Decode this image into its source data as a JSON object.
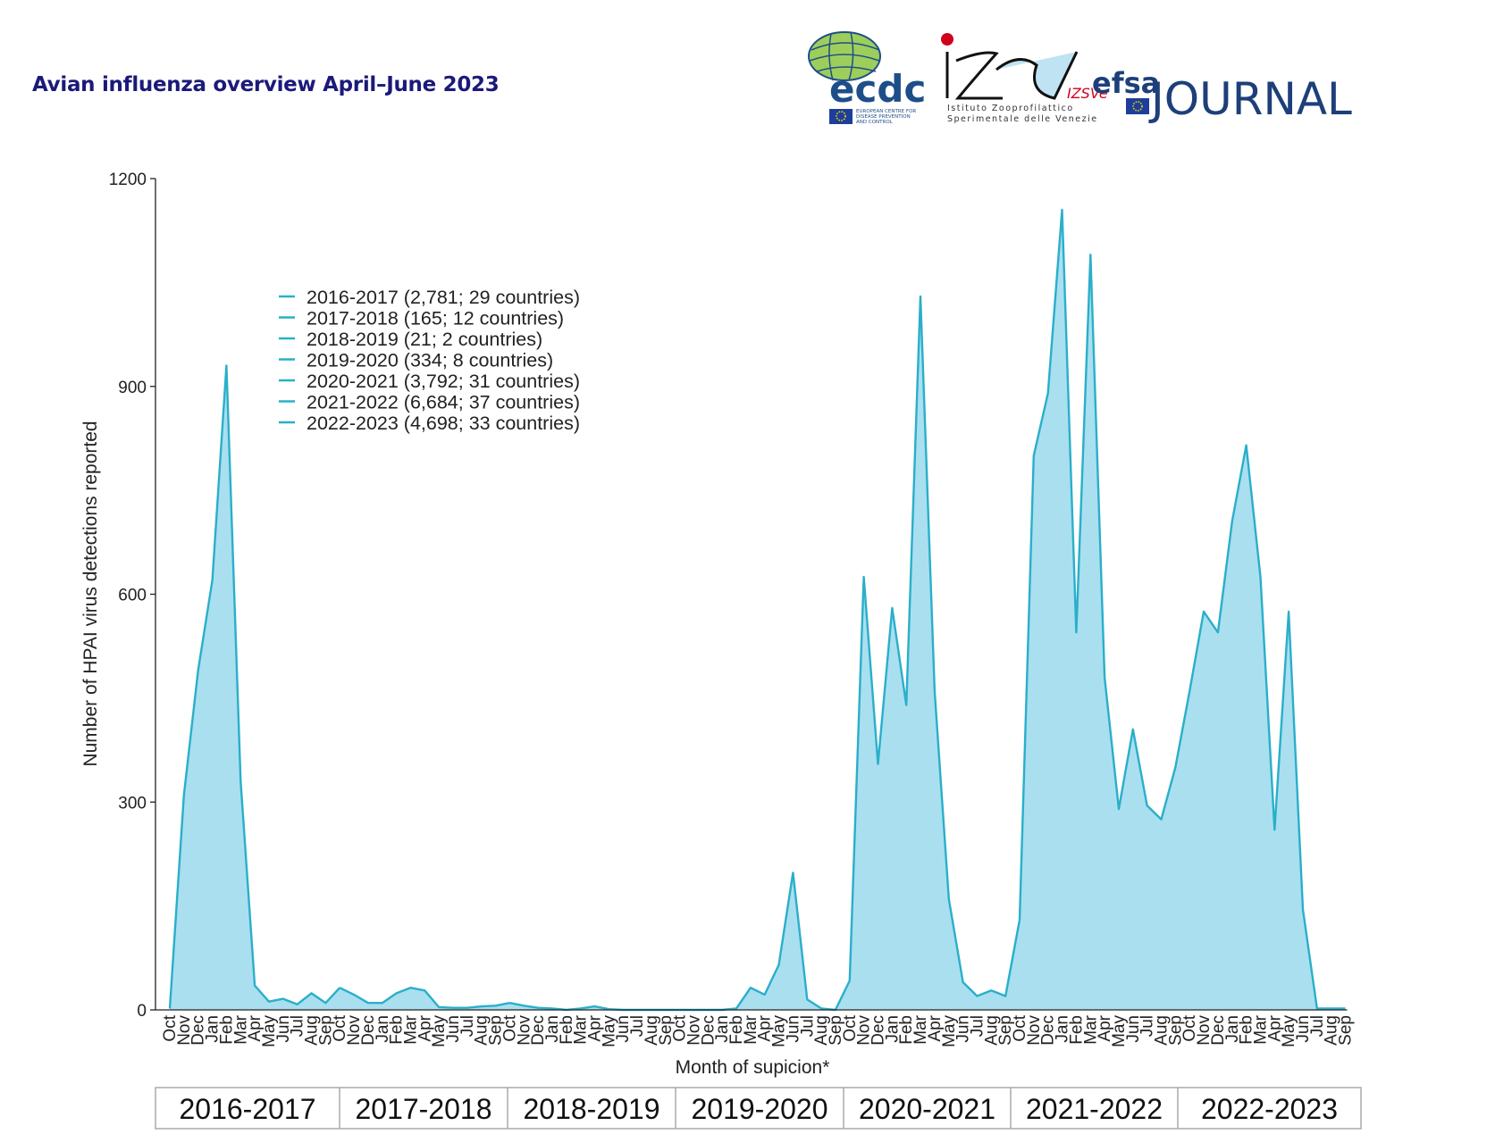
{
  "header": {
    "doc_title": "Avian influenza overview April–June 2023",
    "logo_ecdc": "ecdc",
    "logo_ecdc_sub": [
      "EUROPEAN CENTRE FOR",
      "DISEASE PREVENTION",
      "AND CONTROL"
    ],
    "logo_izsve": "IZSVe",
    "logo_izsve_sub1": "Istituto Zooprofilattico",
    "logo_izsve_sub2": "Sperimentale delle Venezie",
    "logo_efsa": "efsa",
    "logo_journal": "JOURNAL"
  },
  "colors": {
    "line": "#2aafc9",
    "fill": "#aadff0",
    "axis": "#222222",
    "title": "#1b1a7a",
    "season_border": "#aaaaaa"
  },
  "chart_data": {
    "type": "area",
    "title": "",
    "xlabel": "Month of supicion*",
    "ylabel": "Number of HPAI virus detections reported",
    "ylim": [
      0,
      1200
    ],
    "yticks": [
      0,
      300,
      600,
      900,
      1200
    ],
    "grid": false,
    "legend_position": "upper-left",
    "legend": [
      "2016-2017 (2,781; 29 countries)",
      "2017-2018 (165; 12 countries)",
      "2018-2019 (21; 2 countries)",
      "2019-2020 (334; 8 countries)",
      "2020-2021 (3,792; 31 countries)",
      "2021-2022 (6,684; 37 countries)",
      "2022-2023 (4,698; 33 countries)"
    ],
    "months": [
      "Oct",
      "Nov",
      "Dec",
      "Jan",
      "Feb",
      "Mar",
      "Apr",
      "May",
      "Jun",
      "Jul",
      "Aug",
      "Sep"
    ],
    "seasons": [
      {
        "name": "2016-2017",
        "values": [
          2,
          310,
          490,
          620,
          930,
          330,
          35,
          12,
          16,
          8,
          24,
          10
        ]
      },
      {
        "name": "2017-2018",
        "values": [
          32,
          22,
          10,
          10,
          24,
          32,
          28,
          4,
          3,
          3,
          5,
          6
        ]
      },
      {
        "name": "2018-2019",
        "values": [
          10,
          6,
          3,
          2,
          0,
          2,
          5,
          1,
          0,
          0,
          0,
          0
        ]
      },
      {
        "name": "2019-2020",
        "values": [
          0,
          0,
          0,
          0,
          2,
          32,
          22,
          65,
          198,
          15,
          2,
          0
        ]
      },
      {
        "name": "2020-2021",
        "values": [
          42,
          625,
          355,
          580,
          440,
          1030,
          460,
          160,
          40,
          20,
          28,
          20
        ]
      },
      {
        "name": "2021-2022",
        "values": [
          130,
          800,
          890,
          1155,
          545,
          1090,
          480,
          290,
          405,
          295,
          275,
          350
        ]
      },
      {
        "name": "2022-2023",
        "values": [
          460,
          575,
          545,
          705,
          815,
          625,
          260,
          575,
          145,
          2,
          2,
          2
        ]
      }
    ]
  }
}
